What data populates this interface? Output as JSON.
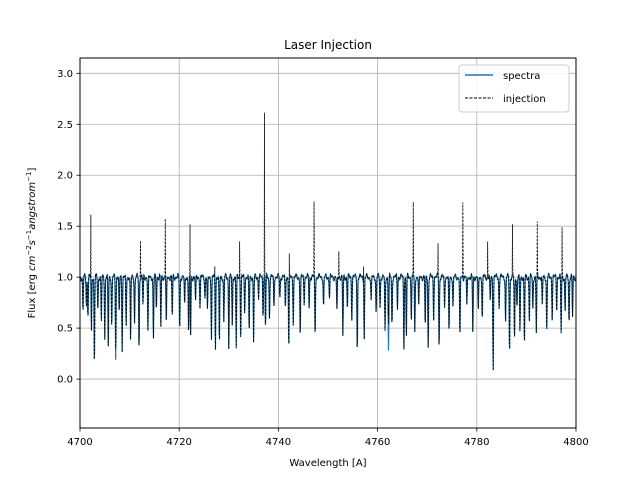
{
  "chart_data": {
    "type": "line",
    "title": "Laser Injection",
    "xlabel": "Wavelength [A]",
    "ylabel_parts": [
      "Flux [erg ",
      "cm",
      "−2",
      "s",
      "−1",
      "angstrom",
      "−1",
      "]"
    ],
    "xlim": [
      4700,
      4800
    ],
    "ylim": [
      -0.48,
      3.15
    ],
    "x_ticks": [
      4700,
      4720,
      4740,
      4760,
      4780,
      4800
    ],
    "y_ticks": [
      0.0,
      0.5,
      1.0,
      1.5,
      2.0,
      2.5,
      3.0
    ],
    "x_tick_labels": [
      "4700",
      "4720",
      "4740",
      "4760",
      "4780",
      "4800"
    ],
    "y_tick_labels": [
      "0.0",
      "0.5",
      "1.0",
      "1.5",
      "2.0",
      "2.5",
      "3.0"
    ],
    "grid": true,
    "legend_position": "top-right",
    "continuum": 1.0,
    "absorption_lines": [
      {
        "x": 4700.6,
        "depth": 0.35
      },
      {
        "x": 4701.3,
        "depth": 0.28
      },
      {
        "x": 4701.6,
        "depth": 0.38
      },
      {
        "x": 4702.3,
        "depth": 0.55
      },
      {
        "x": 4702.9,
        "depth": 0.87
      },
      {
        "x": 4703.6,
        "depth": 0.32
      },
      {
        "x": 4704.3,
        "depth": 0.45
      },
      {
        "x": 4705.0,
        "depth": 0.6
      },
      {
        "x": 4705.7,
        "depth": 0.7
      },
      {
        "x": 4706.4,
        "depth": 0.5
      },
      {
        "x": 4707.2,
        "depth": 0.8
      },
      {
        "x": 4707.9,
        "depth": 0.38
      },
      {
        "x": 4708.5,
        "depth": 0.7
      },
      {
        "x": 4709.3,
        "depth": 0.5
      },
      {
        "x": 4710.2,
        "depth": 0.65
      },
      {
        "x": 4711.0,
        "depth": 0.45
      },
      {
        "x": 4711.9,
        "depth": 0.72
      },
      {
        "x": 4712.7,
        "depth": 0.28
      },
      {
        "x": 4713.7,
        "depth": 0.55
      },
      {
        "x": 4714.8,
        "depth": 0.62
      },
      {
        "x": 4715.4,
        "depth": 0.3
      },
      {
        "x": 4716.3,
        "depth": 0.5
      },
      {
        "x": 4717.4,
        "depth": 0.48
      },
      {
        "x": 4718.6,
        "depth": 0.4
      },
      {
        "x": 4720.1,
        "depth": 0.52
      },
      {
        "x": 4721.1,
        "depth": 0.3
      },
      {
        "x": 4721.9,
        "depth": 0.55
      },
      {
        "x": 4722.3,
        "depth": 0.58
      },
      {
        "x": 4723.3,
        "depth": 0.25
      },
      {
        "x": 4724.2,
        "depth": 0.3
      },
      {
        "x": 4725.2,
        "depth": 0.2
      },
      {
        "x": 4725.7,
        "depth": 0.35
      },
      {
        "x": 4726.5,
        "depth": 0.6
      },
      {
        "x": 4727.3,
        "depth": 0.7
      },
      {
        "x": 4728.1,
        "depth": 0.68
      },
      {
        "x": 4729.0,
        "depth": 0.45
      },
      {
        "x": 4730.0,
        "depth": 0.68
      },
      {
        "x": 4730.7,
        "depth": 0.5
      },
      {
        "x": 4731.5,
        "depth": 0.7
      },
      {
        "x": 4732.4,
        "depth": 0.6
      },
      {
        "x": 4733.2,
        "depth": 0.35
      },
      {
        "x": 4734.1,
        "depth": 0.55
      },
      {
        "x": 4735.0,
        "depth": 0.65
      },
      {
        "x": 4736.0,
        "depth": 0.2
      },
      {
        "x": 4736.9,
        "depth": 0.38
      },
      {
        "x": 4737.4,
        "depth": 0.5
      },
      {
        "x": 4738.2,
        "depth": 0.4
      },
      {
        "x": 4739.1,
        "depth": 0.3
      },
      {
        "x": 4740.3,
        "depth": 0.2
      },
      {
        "x": 4741.4,
        "depth": 0.32
      },
      {
        "x": 4742.1,
        "depth": 0.72
      },
      {
        "x": 4743.0,
        "depth": 0.45
      },
      {
        "x": 4744.4,
        "depth": 0.58
      },
      {
        "x": 4745.2,
        "depth": 0.25
      },
      {
        "x": 4746.2,
        "depth": 0.3
      },
      {
        "x": 4747.4,
        "depth": 0.58
      },
      {
        "x": 4749.1,
        "depth": 0.3
      },
      {
        "x": 4750.3,
        "depth": 0.2
      },
      {
        "x": 4751.8,
        "depth": 0.35
      },
      {
        "x": 4753.0,
        "depth": 0.58
      },
      {
        "x": 4753.9,
        "depth": 0.3
      },
      {
        "x": 4754.8,
        "depth": 0.4
      },
      {
        "x": 4755.9,
        "depth": 0.72
      },
      {
        "x": 4757.3,
        "depth": 0.62
      },
      {
        "x": 4758.7,
        "depth": 0.25
      },
      {
        "x": 4759.7,
        "depth": 0.35
      },
      {
        "x": 4760.5,
        "depth": 0.3
      },
      {
        "x": 4761.5,
        "depth": 0.55
      },
      {
        "x": 4762.2,
        "depth": 0.72
      },
      {
        "x": 4762.9,
        "depth": 0.48
      },
      {
        "x": 4764.0,
        "depth": 0.3
      },
      {
        "x": 4765.3,
        "depth": 0.7
      },
      {
        "x": 4765.8,
        "depth": 0.58
      },
      {
        "x": 4766.8,
        "depth": 0.4
      },
      {
        "x": 4767.5,
        "depth": 0.55
      },
      {
        "x": 4768.3,
        "depth": 0.3
      },
      {
        "x": 4769.6,
        "depth": 0.5
      },
      {
        "x": 4770.2,
        "depth": 0.7
      },
      {
        "x": 4771.3,
        "depth": 0.4
      },
      {
        "x": 4772.4,
        "depth": 0.7
      },
      {
        "x": 4773.5,
        "depth": 0.3
      },
      {
        "x": 4774.4,
        "depth": 0.58
      },
      {
        "x": 4775.2,
        "depth": 0.3
      },
      {
        "x": 4776.6,
        "depth": 0.62
      },
      {
        "x": 4778.0,
        "depth": 0.3
      },
      {
        "x": 4779.2,
        "depth": 0.55
      },
      {
        "x": 4780.3,
        "depth": 0.35
      },
      {
        "x": 4781.1,
        "depth": 0.42
      },
      {
        "x": 4782.7,
        "depth": 0.25
      },
      {
        "x": 4783.3,
        "depth": 0.9
      },
      {
        "x": 4784.5,
        "depth": 0.3
      },
      {
        "x": 4785.8,
        "depth": 0.45
      },
      {
        "x": 4786.6,
        "depth": 0.75
      },
      {
        "x": 4787.6,
        "depth": 0.65
      },
      {
        "x": 4788.1,
        "depth": 0.3
      },
      {
        "x": 4788.7,
        "depth": 0.55
      },
      {
        "x": 4789.6,
        "depth": 0.68
      },
      {
        "x": 4790.6,
        "depth": 0.45
      },
      {
        "x": 4791.3,
        "depth": 0.32
      },
      {
        "x": 4792.0,
        "depth": 0.55
      },
      {
        "x": 4793.2,
        "depth": 0.3
      },
      {
        "x": 4794.1,
        "depth": 0.55
      },
      {
        "x": 4795.2,
        "depth": 0.4
      },
      {
        "x": 4796.1,
        "depth": 0.32
      },
      {
        "x": 4797.0,
        "depth": 0.55
      },
      {
        "x": 4797.8,
        "depth": 0.35
      },
      {
        "x": 4798.6,
        "depth": 0.45
      },
      {
        "x": 4799.3,
        "depth": 0.4
      }
    ],
    "injection_spikes": [
      {
        "x": 4702.2,
        "peak": 1.82
      },
      {
        "x": 4707.2,
        "peak": 1.12
      },
      {
        "x": 4712.2,
        "peak": 1.44
      },
      {
        "x": 4717.2,
        "peak": 1.66
      },
      {
        "x": 4722.2,
        "peak": 1.71
      },
      {
        "x": 4727.2,
        "peak": 1.28
      },
      {
        "x": 4732.2,
        "peak": 1.41
      },
      {
        "x": 4737.2,
        "peak": 2.83
      },
      {
        "x": 4742.2,
        "peak": 1.55
      },
      {
        "x": 4747.2,
        "peak": 1.82
      },
      {
        "x": 4752.2,
        "peak": 1.3
      },
      {
        "x": 4757.2,
        "peak": 1.3
      },
      {
        "x": 4762.2,
        "peak": 1.52
      },
      {
        "x": 4767.2,
        "peak": 1.83
      },
      {
        "x": 4772.2,
        "peak": 1.38
      },
      {
        "x": 4777.2,
        "peak": 1.85
      },
      {
        "x": 4782.2,
        "peak": 1.4
      },
      {
        "x": 4787.2,
        "peak": 1.56
      },
      {
        "x": 4792.2,
        "peak": 1.59
      },
      {
        "x": 4797.2,
        "peak": 1.56
      }
    ],
    "series": [
      {
        "name": "spectra",
        "color": "#1f77b4",
        "style": "solid"
      },
      {
        "name": "injection",
        "color": "#000000",
        "style": "dashed"
      }
    ]
  }
}
